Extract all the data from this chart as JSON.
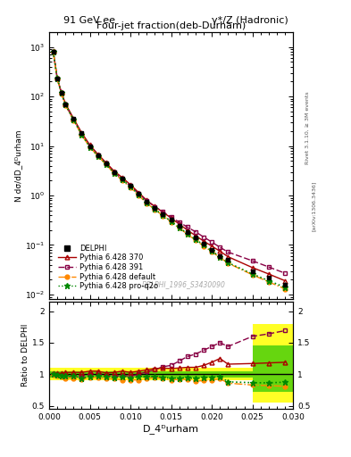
{
  "title_left": "91 GeV ee",
  "title_right": "γ*/Z (Hadronic)",
  "plot_title": "Four-jet fraction(deb-Durham)",
  "xlabel": "D_4ᴰurham",
  "ylabel_main": "N dσ/dD_4ᴰurham",
  "ylabel_ratio": "Ratio to DELPHI",
  "watermark": "DELPHI_1996_S3430090",
  "right_label": "Rivet 3.1.10, ≥ 3M events",
  "arxiv_label": "[arXiv:1306.3436]",
  "x_data": [
    0.0005,
    0.001,
    0.0015,
    0.002,
    0.003,
    0.004,
    0.005,
    0.006,
    0.007,
    0.008,
    0.009,
    0.01,
    0.011,
    0.012,
    0.013,
    0.014,
    0.015,
    0.016,
    0.017,
    0.018,
    0.019,
    0.02,
    0.021,
    0.022,
    0.025,
    0.027,
    0.029
  ],
  "delphi_y": [
    800,
    230,
    120,
    70,
    35,
    18,
    10,
    6.5,
    4.5,
    3.0,
    2.2,
    1.6,
    1.1,
    0.75,
    0.55,
    0.42,
    0.32,
    0.24,
    0.18,
    0.14,
    0.105,
    0.08,
    0.06,
    0.05,
    0.03,
    0.022,
    0.016
  ],
  "delphi_yerr": [
    50,
    20,
    10,
    6,
    3,
    1.5,
    0.8,
    0.5,
    0.35,
    0.25,
    0.18,
    0.12,
    0.09,
    0.06,
    0.045,
    0.035,
    0.026,
    0.02,
    0.015,
    0.012,
    0.009,
    0.007,
    0.005,
    0.004,
    0.003,
    0.002,
    0.0015
  ],
  "py370_y": [
    820,
    235,
    122,
    72,
    36,
    18.5,
    10.5,
    6.8,
    4.6,
    3.1,
    2.3,
    1.65,
    1.15,
    0.8,
    0.6,
    0.46,
    0.35,
    0.265,
    0.2,
    0.155,
    0.12,
    0.095,
    0.075,
    0.058,
    0.035,
    0.026,
    0.019
  ],
  "py391_y": [
    810,
    228,
    118,
    68,
    34,
    17.5,
    10.0,
    6.6,
    4.4,
    2.9,
    2.15,
    1.55,
    1.1,
    0.78,
    0.59,
    0.47,
    0.365,
    0.29,
    0.23,
    0.185,
    0.145,
    0.115,
    0.09,
    0.072,
    0.048,
    0.036,
    0.027
  ],
  "pydef_y": [
    790,
    225,
    115,
    66,
    33,
    16.5,
    9.5,
    6.2,
    4.2,
    2.8,
    2.0,
    1.45,
    1.0,
    0.7,
    0.52,
    0.39,
    0.29,
    0.22,
    0.165,
    0.125,
    0.095,
    0.073,
    0.056,
    0.043,
    0.025,
    0.018,
    0.013
  ],
  "pyq2o_y": [
    800,
    228,
    118,
    68,
    34,
    17.0,
    9.6,
    6.3,
    4.3,
    2.85,
    2.1,
    1.5,
    1.05,
    0.72,
    0.53,
    0.4,
    0.3,
    0.225,
    0.17,
    0.13,
    0.1,
    0.076,
    0.058,
    0.044,
    0.026,
    0.019,
    0.014
  ],
  "ratio_py370": [
    1.02,
    1.02,
    1.015,
    1.03,
    1.03,
    1.03,
    1.05,
    1.05,
    1.02,
    1.03,
    1.05,
    1.03,
    1.05,
    1.07,
    1.09,
    1.1,
    1.09,
    1.1,
    1.11,
    1.11,
    1.14,
    1.19,
    1.25,
    1.16,
    1.17,
    1.18,
    1.19
  ],
  "ratio_py391": [
    1.01,
    0.99,
    0.985,
    0.97,
    0.97,
    0.97,
    1.0,
    1.02,
    0.98,
    0.97,
    0.98,
    0.97,
    1.0,
    1.04,
    1.07,
    1.12,
    1.14,
    1.21,
    1.28,
    1.32,
    1.38,
    1.44,
    1.5,
    1.44,
    1.6,
    1.64,
    1.69
  ],
  "ratio_pydef": [
    0.99,
    0.98,
    0.96,
    0.94,
    0.94,
    0.92,
    0.95,
    0.95,
    0.93,
    0.93,
    0.91,
    0.91,
    0.91,
    0.93,
    0.95,
    0.93,
    0.91,
    0.92,
    0.92,
    0.89,
    0.9,
    0.91,
    0.93,
    0.86,
    0.83,
    0.82,
    0.81
  ],
  "ratio_pyq2o": [
    1.0,
    0.99,
    0.98,
    0.97,
    0.97,
    0.94,
    0.96,
    0.97,
    0.96,
    0.95,
    0.955,
    0.94,
    0.955,
    0.96,
    0.965,
    0.95,
    0.94,
    0.94,
    0.944,
    0.93,
    0.953,
    0.95,
    0.967,
    0.88,
    0.867,
    0.864,
    0.875
  ],
  "color_delphi": "#000000",
  "color_py370": "#aa0000",
  "color_py391": "#880044",
  "color_pydef": "#ff8800",
  "color_pyq2o": "#008800",
  "color_yellow": "#ffff00",
  "color_green": "#00bb00",
  "ylim_main": [
    0.008,
    2000
  ],
  "ylim_ratio": [
    0.45,
    2.15
  ],
  "xlim": [
    0.0,
    0.03
  ],
  "yticks_ratio": [
    0.5,
    1.0,
    1.5,
    2.0
  ],
  "ytick_labels_ratio": [
    "0.5",
    "1",
    "1.5",
    "2"
  ]
}
